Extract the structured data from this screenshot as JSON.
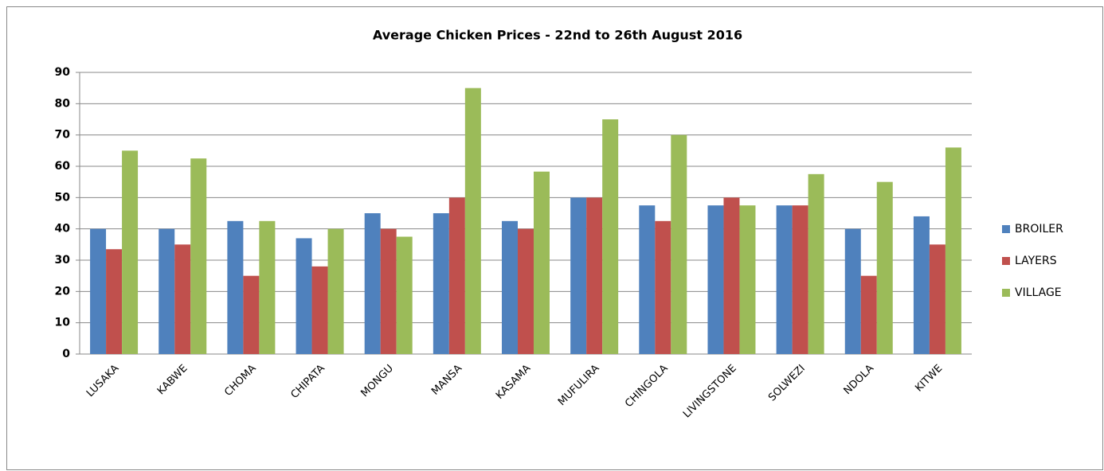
{
  "chart_data": {
    "type": "bar",
    "title": "Average Chicken Prices - 22nd to 26th August 2016",
    "categories": [
      "LUSAKA",
      "KABWE",
      "CHOMA",
      "CHIPATA",
      "MONGU",
      "MANSA",
      "KASAMA",
      "MUFULIRA",
      "CHINGOLA",
      "LIVINGSTONE",
      "SOLWEZI",
      "NDOLA",
      "KITWE"
    ],
    "series": [
      {
        "name": "BROILER",
        "color": "#4f81bd",
        "values": [
          40,
          40,
          42.5,
          37,
          45,
          45,
          42.5,
          50,
          47.5,
          47.5,
          47.5,
          40,
          44
        ]
      },
      {
        "name": "LAYERS",
        "color": "#c0504d",
        "values": [
          33.5,
          35,
          25,
          28,
          40,
          50,
          40,
          50,
          42.5,
          50,
          47.5,
          25,
          35
        ]
      },
      {
        "name": "VILLAGE",
        "color": "#9bbb59",
        "values": [
          65,
          62.5,
          42.5,
          40,
          37.5,
          85,
          58.3,
          75,
          70,
          47.5,
          57.5,
          55,
          66
        ]
      }
    ],
    "ylim": [
      0,
      90
    ],
    "yticks": [
      0,
      10,
      20,
      30,
      40,
      50,
      60,
      70,
      80,
      90
    ],
    "grid": true,
    "legend": "right"
  }
}
